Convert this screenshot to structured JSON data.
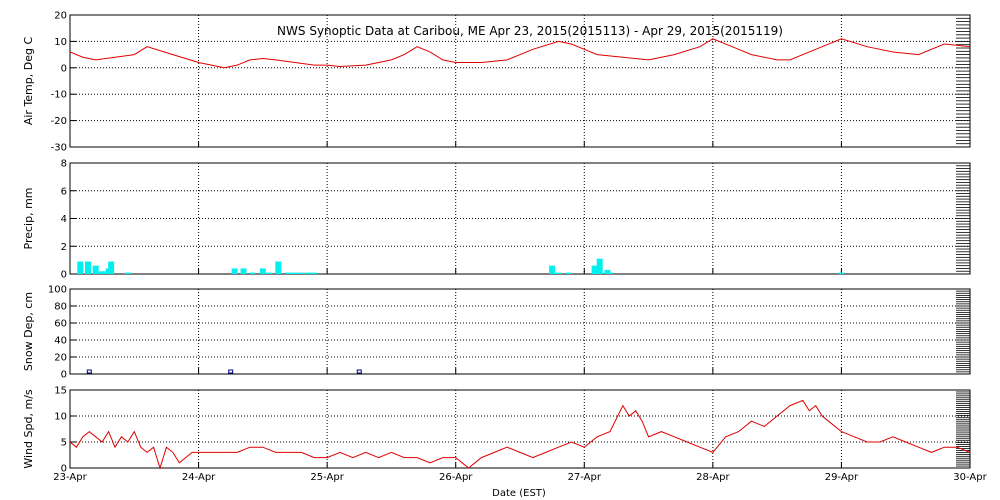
{
  "chart_data": {
    "type": "line",
    "title": "NWS Synoptic Data at Caribou, ME   Apr 23, 2015(2015113) - Apr 29, 2015(2015119)",
    "xlabel": "Date (EST)",
    "x_ticks": [
      "23-Apr",
      "24-Apr",
      "25-Apr",
      "26-Apr",
      "27-Apr",
      "28-Apr",
      "29-Apr",
      "30-Apr"
    ],
    "x_range_days": [
      0,
      7
    ],
    "colors": {
      "temp": "#e00000",
      "precip": "#00f0f0",
      "snow": "#00008b",
      "wind": "#e00000",
      "grid": "#000000"
    },
    "panels": [
      {
        "id": "air_temp",
        "type": "line",
        "ylabel": "Air Temp, Deg C",
        "ylim": [
          -30,
          20
        ],
        "yticks": [
          "20",
          "10",
          "0",
          "-10",
          "-20",
          "-30"
        ],
        "x": [
          0,
          0.1,
          0.2,
          0.35,
          0.5,
          0.6,
          0.8,
          1.0,
          1.1,
          1.2,
          1.3,
          1.4,
          1.5,
          1.6,
          1.75,
          1.9,
          2.0,
          2.1,
          2.3,
          2.5,
          2.6,
          2.7,
          2.8,
          2.9,
          3.0,
          3.2,
          3.4,
          3.6,
          3.8,
          3.9,
          4.0,
          4.1,
          4.3,
          4.5,
          4.7,
          4.9,
          5.0,
          5.1,
          5.2,
          5.3,
          5.5,
          5.6,
          5.8,
          5.9,
          6.0,
          6.2,
          6.4,
          6.6,
          6.8,
          7.0
        ],
        "values": [
          6,
          4,
          3,
          4,
          5,
          8,
          5,
          2,
          1,
          0,
          1,
          3,
          3.5,
          3,
          2,
          1,
          1,
          0.5,
          1,
          3,
          5,
          8,
          6,
          3,
          2,
          2,
          3,
          7,
          10,
          9,
          7,
          5,
          4,
          3,
          5,
          8,
          11,
          9,
          7,
          5,
          3,
          3,
          7,
          9,
          11,
          8,
          6,
          5,
          9,
          8
        ]
      },
      {
        "id": "precip",
        "type": "bar",
        "ylabel": "Precip, mm",
        "ylim": [
          0,
          8
        ],
        "yticks": [
          "8",
          "6",
          "4",
          "2",
          "0"
        ],
        "x": [
          0.08,
          0.14,
          0.2,
          0.25,
          0.3,
          0.32,
          0.45,
          1.28,
          1.35,
          1.42,
          1.5,
          1.55,
          1.62,
          1.7,
          1.75,
          1.8,
          1.85,
          1.9,
          3.75,
          3.8,
          3.88,
          4.08,
          4.12,
          4.18,
          4.2,
          6.0
        ],
        "values": [
          0.9,
          0.9,
          0.6,
          0.2,
          0.4,
          0.9,
          0.1,
          0.4,
          0.4,
          0.1,
          0.4,
          0.1,
          0.9,
          0.1,
          0.1,
          0.1,
          0.1,
          0.1,
          0.6,
          0.1,
          0.1,
          0.6,
          1.1,
          0.3,
          0.1,
          0.1
        ]
      },
      {
        "id": "snow_depth",
        "type": "scatter",
        "ylabel": "Snow Dep, cm",
        "ylim": [
          0,
          100
        ],
        "yticks": [
          "100",
          "80",
          "60",
          "40",
          "20",
          "0"
        ],
        "x": [
          0.15,
          1.25,
          2.25
        ],
        "values": [
          0,
          0,
          0
        ]
      },
      {
        "id": "wind_speed",
        "type": "line",
        "ylabel": "Wind Spd, m/s",
        "ylim": [
          0,
          15
        ],
        "yticks": [
          "15",
          "10",
          "5",
          "0"
        ],
        "x": [
          0,
          0.05,
          0.1,
          0.15,
          0.2,
          0.25,
          0.3,
          0.35,
          0.4,
          0.45,
          0.5,
          0.55,
          0.6,
          0.65,
          0.7,
          0.75,
          0.8,
          0.85,
          0.9,
          0.95,
          1.0,
          1.1,
          1.2,
          1.3,
          1.4,
          1.5,
          1.6,
          1.7,
          1.8,
          1.9,
          2.0,
          2.1,
          2.2,
          2.3,
          2.4,
          2.5,
          2.6,
          2.7,
          2.8,
          2.9,
          3.0,
          3.05,
          3.1,
          3.15,
          3.2,
          3.3,
          3.4,
          3.5,
          3.6,
          3.7,
          3.8,
          3.9,
          4.0,
          4.1,
          4.2,
          4.3,
          4.35,
          4.4,
          4.45,
          4.5,
          4.6,
          4.7,
          4.8,
          4.9,
          5.0,
          5.1,
          5.2,
          5.3,
          5.4,
          5.5,
          5.6,
          5.7,
          5.75,
          5.8,
          5.85,
          5.9,
          6.0,
          6.1,
          6.2,
          6.3,
          6.4,
          6.5,
          6.6,
          6.7,
          6.8,
          6.9,
          7.0
        ],
        "values": [
          5,
          4,
          6,
          7,
          6,
          5,
          7,
          4,
          6,
          5,
          7,
          4,
          3,
          4,
          0,
          4,
          3,
          1,
          2,
          3,
          3,
          3,
          3,
          3,
          4,
          4,
          3,
          3,
          3,
          2,
          2,
          3,
          2,
          3,
          2,
          3,
          2,
          2,
          1,
          2,
          2,
          1,
          0,
          1,
          2,
          3,
          4,
          3,
          2,
          3,
          4,
          5,
          4,
          6,
          7,
          12,
          10,
          11,
          9,
          6,
          7,
          6,
          5,
          4,
          3,
          6,
          7,
          9,
          8,
          10,
          12,
          13,
          11,
          12,
          10,
          9,
          7,
          6,
          5,
          5,
          6,
          5,
          4,
          3,
          4,
          4,
          3
        ]
      }
    ]
  }
}
